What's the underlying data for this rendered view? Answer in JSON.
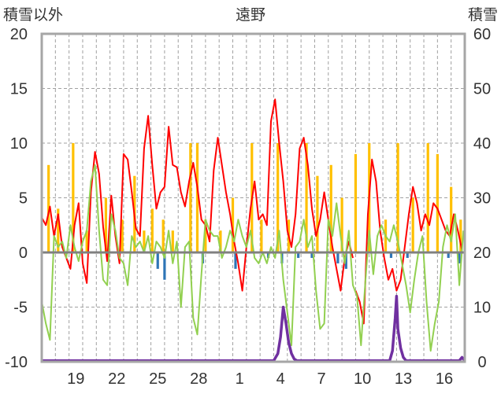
{
  "chart_data": {
    "type": "line",
    "title": "遠野",
    "left_axis_label": "積雪以外",
    "right_axis_label": "積雪",
    "left_axis": {
      "min": -10,
      "max": 20,
      "ticks": [
        -10,
        -5,
        0,
        5,
        10,
        15,
        20
      ]
    },
    "right_axis": {
      "min": 0,
      "max": 60,
      "ticks": [
        0,
        10,
        20,
        30,
        40,
        50,
        60
      ]
    },
    "x_tick_labels": [
      "19",
      "22",
      "25",
      "28",
      "1",
      "4",
      "7",
      "10",
      "13",
      "16"
    ],
    "x_tick_days": [
      2,
      5,
      8,
      11,
      14,
      17,
      20,
      23,
      26,
      29
    ],
    "x_range_days": [
      0,
      31
    ],
    "grid": "dashed",
    "colors": {
      "max_temp": "#ff0000",
      "min_temp": "#92d050",
      "precip_positive": "#ffc000",
      "precip_negative": "#2e75b6",
      "snow_depth": "#7030a0",
      "zero_line": "#808080",
      "frame": "#a6a6a6"
    },
    "series": [
      {
        "key": "max_temp",
        "axis": "left",
        "x": [
          0.0,
          0.3,
          0.6,
          0.9,
          1.2,
          1.5,
          1.8,
          2.1,
          2.4,
          2.7,
          3.0,
          3.3,
          3.6,
          3.9,
          4.2,
          4.5,
          4.8,
          5.1,
          5.4,
          5.7,
          6.0,
          6.3,
          6.6,
          6.9,
          7.2,
          7.5,
          7.8,
          8.1,
          8.4,
          8.7,
          9.0,
          9.3,
          9.6,
          9.9,
          10.2,
          10.5,
          10.8,
          11.1,
          11.4,
          11.7,
          12.0,
          12.3,
          12.6,
          12.9,
          13.2,
          13.5,
          13.8,
          14.1,
          14.4,
          14.7,
          15.0,
          15.3,
          15.6,
          15.9,
          16.2,
          16.5,
          16.8,
          17.1,
          17.4,
          17.7,
          18.0,
          18.3,
          18.6,
          18.9,
          19.2,
          19.5,
          19.8,
          20.1,
          20.4,
          20.7,
          21.0,
          21.3,
          21.6,
          21.9,
          22.2,
          22.5,
          22.8
        ],
        "y": [
          3.2,
          2.5,
          4.2,
          1.5,
          3.5,
          0.5,
          -0.5,
          -1.5,
          2.5,
          4.5,
          -1.0,
          -2.8,
          5.5,
          9.2,
          7.2,
          2.3,
          -0.8,
          5.2,
          1.5,
          -1.0,
          9.0,
          8.5,
          5.5,
          2.2,
          1.5,
          9.5,
          12.5,
          8.0,
          4.0,
          5.5,
          6.0,
          11.5,
          8.0,
          7.8,
          5.5,
          4.2,
          6.5,
          8.2,
          6.0,
          3.0,
          2.5,
          1.0,
          7.5,
          10.5,
          8.0,
          5.5,
          3.5,
          1.0,
          -1.0,
          -3.5,
          0.5,
          4.0,
          6.5,
          3.0,
          3.5,
          2.5,
          12.0,
          14.0,
          10.0,
          6.5,
          2.0,
          0.5,
          3.5,
          9.5,
          10.5,
          8.0,
          4.0,
          1.5,
          3.0,
          5.5,
          3.0,
          0.5,
          -1.5,
          -3.5,
          -0.5,
          1.0,
          -0.5
        ]
      },
      {
        "key": "max_temp_b",
        "axis": "left",
        "x": [
          23.0,
          23.3,
          23.6,
          23.9,
          24.2,
          24.5,
          24.8,
          25.1,
          25.4,
          25.7,
          26.0,
          26.3,
          26.6,
          26.9,
          27.2,
          27.5,
          27.8,
          28.1,
          28.4,
          28.7,
          29.0,
          29.3,
          29.6,
          29.9,
          30.2,
          30.5,
          30.8
        ],
        "y": [
          -3.5,
          -4.5,
          -6.5,
          3.5,
          8.5,
          6.5,
          2.0,
          -0.5,
          -2.5,
          -1.5,
          -3.5,
          -2.5,
          0.5,
          3.5,
          6.0,
          4.5,
          2.0,
          3.5,
          2.5,
          4.5,
          4.0,
          3.0,
          2.0,
          1.5,
          3.5,
          2.0,
          0.2
        ]
      },
      {
        "key": "min_temp",
        "axis": "left",
        "x": [
          0.0,
          0.3,
          0.6,
          0.9,
          1.2,
          1.5,
          1.8,
          2.1,
          2.4,
          2.7,
          3.0,
          3.3,
          3.6,
          3.9,
          4.2,
          4.5,
          4.8,
          5.1,
          5.4,
          5.7,
          6.0,
          6.3,
          6.6,
          6.9,
          7.2,
          7.5,
          7.8,
          8.1,
          8.4,
          8.7,
          9.0,
          9.3,
          9.6,
          9.9,
          10.2,
          10.5,
          10.8,
          11.1,
          11.4,
          11.7,
          12.0,
          12.3,
          12.6,
          12.9,
          13.2,
          13.5,
          13.8,
          14.1,
          14.4,
          14.7,
          15.0,
          15.3,
          15.6,
          15.9,
          16.2,
          16.5,
          16.8,
          17.1,
          17.4,
          17.7,
          18.0,
          18.3,
          18.6,
          18.9,
          19.2,
          19.5,
          19.8,
          20.1,
          20.4,
          20.7,
          21.0,
          21.3,
          21.6,
          21.9,
          22.2,
          22.5,
          22.8,
          23.1,
          23.4,
          23.7,
          24.0,
          24.3,
          24.6,
          24.9,
          25.2,
          25.5,
          25.8,
          26.1,
          26.4,
          26.7,
          27.0,
          27.3,
          27.6,
          27.9,
          28.2,
          28.5,
          28.8,
          29.1,
          29.4,
          29.7,
          30.0,
          30.3,
          30.6,
          30.9
        ],
        "y": [
          -4.5,
          -6.5,
          -8.0,
          1.5,
          0.5,
          1.0,
          -0.5,
          2.5,
          0.5,
          -0.8,
          1.0,
          2.0,
          6.5,
          8.0,
          2.0,
          -2.5,
          -3.0,
          3.5,
          2.0,
          -0.5,
          -1.0,
          -3.0,
          1.5,
          0.5,
          1.0,
          0.0,
          1.5,
          -1.0,
          1.0,
          0.5,
          -0.5,
          2.0,
          -1.0,
          1.0,
          -5.0,
          0.5,
          1.0,
          -6.0,
          -7.5,
          -2.0,
          3.0,
          2.0,
          1.5,
          1.5,
          -0.5,
          0.5,
          2.0,
          1.0,
          3.0,
          1.5,
          0.5,
          2.0,
          -0.5,
          -1.0,
          0.0,
          -1.0,
          0.5,
          -0.5,
          2.0,
          -2.5,
          -5.5,
          -8.5,
          0.5,
          1.0,
          3.0,
          0.5,
          1.5,
          -3.5,
          -7.0,
          -6.5,
          3.0,
          1.5,
          4.5,
          1.5,
          -1.0,
          2.0,
          -3.0,
          -4.0,
          -8.5,
          -3.0,
          2.0,
          -2.0,
          1.5,
          2.5,
          1.5,
          1.0,
          2.5,
          1.0,
          -1.0,
          -3.0,
          -5.5,
          -2.5,
          0.0,
          1.5,
          -4.5,
          -9.0,
          -6.5,
          -4.5,
          0.5,
          2.5,
          1.0,
          3.5,
          -3.0,
          2.0
        ]
      },
      {
        "key": "snow_depth",
        "axis": "right",
        "x": [
          0.0,
          17.0,
          17.3,
          17.5,
          17.7,
          17.9,
          18.1,
          18.3,
          18.5,
          18.7,
          18.9,
          19.2,
          25.5,
          25.7,
          25.9,
          26.0,
          26.1,
          26.3,
          26.5,
          26.7,
          26.9,
          30.6,
          30.8,
          31.0
        ],
        "y": [
          0.2,
          0.2,
          1.5,
          4.5,
          10.0,
          7.0,
          3.5,
          1.5,
          0.5,
          0.2,
          0.2,
          0.2,
          0.2,
          2.0,
          8.0,
          12.0,
          6.0,
          2.5,
          0.8,
          0.2,
          0.2,
          0.2,
          0.8,
          0.2
        ]
      }
    ],
    "precipitation": {
      "color_positive": "#ffc000",
      "color_negative": "#2e75b6",
      "x": [
        0.5,
        1.2,
        2.3,
        3.3,
        4.7,
        5.9,
        6.8,
        7.5,
        8.1,
        8.9,
        9.6,
        10.9,
        11.4,
        12.0,
        13.1,
        14.0,
        15.4,
        16.1,
        17.3,
        18.1,
        19.4,
        20.2,
        21.2,
        22.0,
        23.0,
        24.0,
        25.2,
        26.1,
        27.2,
        28.3,
        29.0,
        30.0,
        30.7,
        8.5,
        9.0,
        11.8,
        14.2,
        16.6,
        17.6,
        18.8,
        19.8,
        21.7,
        22.3,
        25.6,
        26.8,
        29.8,
        30.6
      ],
      "values": [
        8,
        4,
        10,
        2,
        5,
        3,
        7,
        2,
        4,
        3,
        2,
        10,
        10,
        3,
        2,
        5,
        10,
        3,
        10,
        3,
        10,
        7,
        8,
        5,
        9,
        10,
        3,
        10,
        5,
        10,
        9,
        6,
        3,
        -1.5,
        -2.5,
        -1,
        -1.5,
        -0.5,
        -1,
        -0.5,
        -0.5,
        -1,
        -1.5,
        -0.5,
        -0.5,
        -0.5,
        -1
      ]
    }
  }
}
